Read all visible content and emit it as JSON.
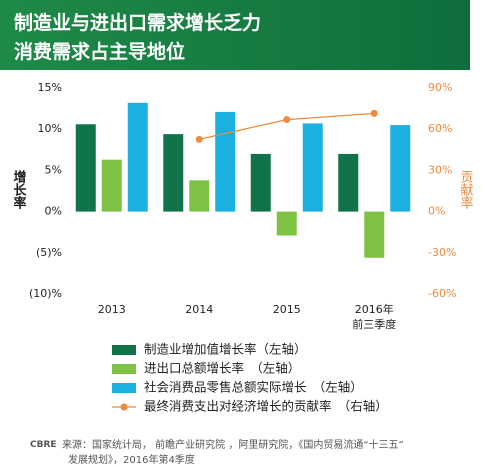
{
  "chart_data": {
    "type": "bar",
    "title": [
      "制造业与进出口需求增长乏力",
      "消费需求占主导地位"
    ],
    "y_label": "增长率",
    "y2_label": "贡献率",
    "categories": [
      "2013",
      "2014",
      "2015",
      "2016年\n前三季度"
    ],
    "series": [
      {
        "name": "制造业增加值增长率（左轴）",
        "color": "#11734a",
        "type": "bar",
        "values": [
          10.6,
          9.4,
          7.0,
          7.0
        ]
      },
      {
        "name": "进出口总额增长率　（左轴）",
        "color": "#7dc242",
        "type": "bar",
        "values": [
          6.3,
          3.8,
          -2.9,
          -5.6
        ]
      },
      {
        "name": "社会消费品零售总额实际增长　（左轴）",
        "color": "#1ab1e0",
        "type": "bar",
        "values": [
          13.2,
          12.1,
          10.7,
          10.5
        ]
      },
      {
        "name": "最终消费支出对经济增长的贡献率　（右轴）",
        "color": "#ee8a3c",
        "type": "line",
        "axis": "y2",
        "values": [
          null,
          52.6,
          67,
          71.5
        ]
      }
    ],
    "ylim": [
      -10,
      15
    ],
    "yticks": [
      {
        "value": 15,
        "label": "15%"
      },
      {
        "value": 10,
        "label": "10%"
      },
      {
        "value": 5,
        "label": "5%"
      },
      {
        "value": 0,
        "label": "0%"
      },
      {
        "value": -5,
        "label": "(5)%"
      },
      {
        "value": -10,
        "label": "(10)%"
      }
    ],
    "y2lim": [
      -60,
      90
    ],
    "y2ticks": [
      {
        "value": 90,
        "label": "90%"
      },
      {
        "value": 60,
        "label": "60%"
      },
      {
        "value": 30,
        "label": "30%"
      },
      {
        "value": 0,
        "label": "0%"
      },
      {
        "value": -30,
        "label": "-30%"
      },
      {
        "value": -60,
        "label": "-60%"
      }
    ],
    "brand": "CBRE",
    "source": [
      "来源：国家统计局，  前瞻产业研究院 ，阿里研究院，《国内贸易流通“十三五”",
      "发展规划》，2016年第4季度"
    ]
  }
}
